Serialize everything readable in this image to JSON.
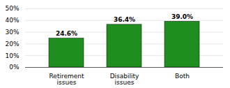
{
  "chart_data": {
    "type": "bar",
    "categories": [
      "Retirement\nissues",
      "Disability\nissues",
      "Both"
    ],
    "values": [
      24.6,
      36.4,
      39.0
    ],
    "value_labels": [
      "24.6%",
      "36.4%",
      "39.0%"
    ],
    "data_labels": true,
    "color": "#1e8f1e",
    "ylim": [
      0,
      50
    ],
    "yticks": [
      {
        "value": 0,
        "label": "0%"
      },
      {
        "value": 10,
        "label": "10%"
      },
      {
        "value": 20,
        "label": "20%"
      },
      {
        "value": 30,
        "label": "30%"
      },
      {
        "value": 40,
        "label": "40%"
      },
      {
        "value": 50,
        "label": "50%"
      }
    ],
    "grid": true
  }
}
